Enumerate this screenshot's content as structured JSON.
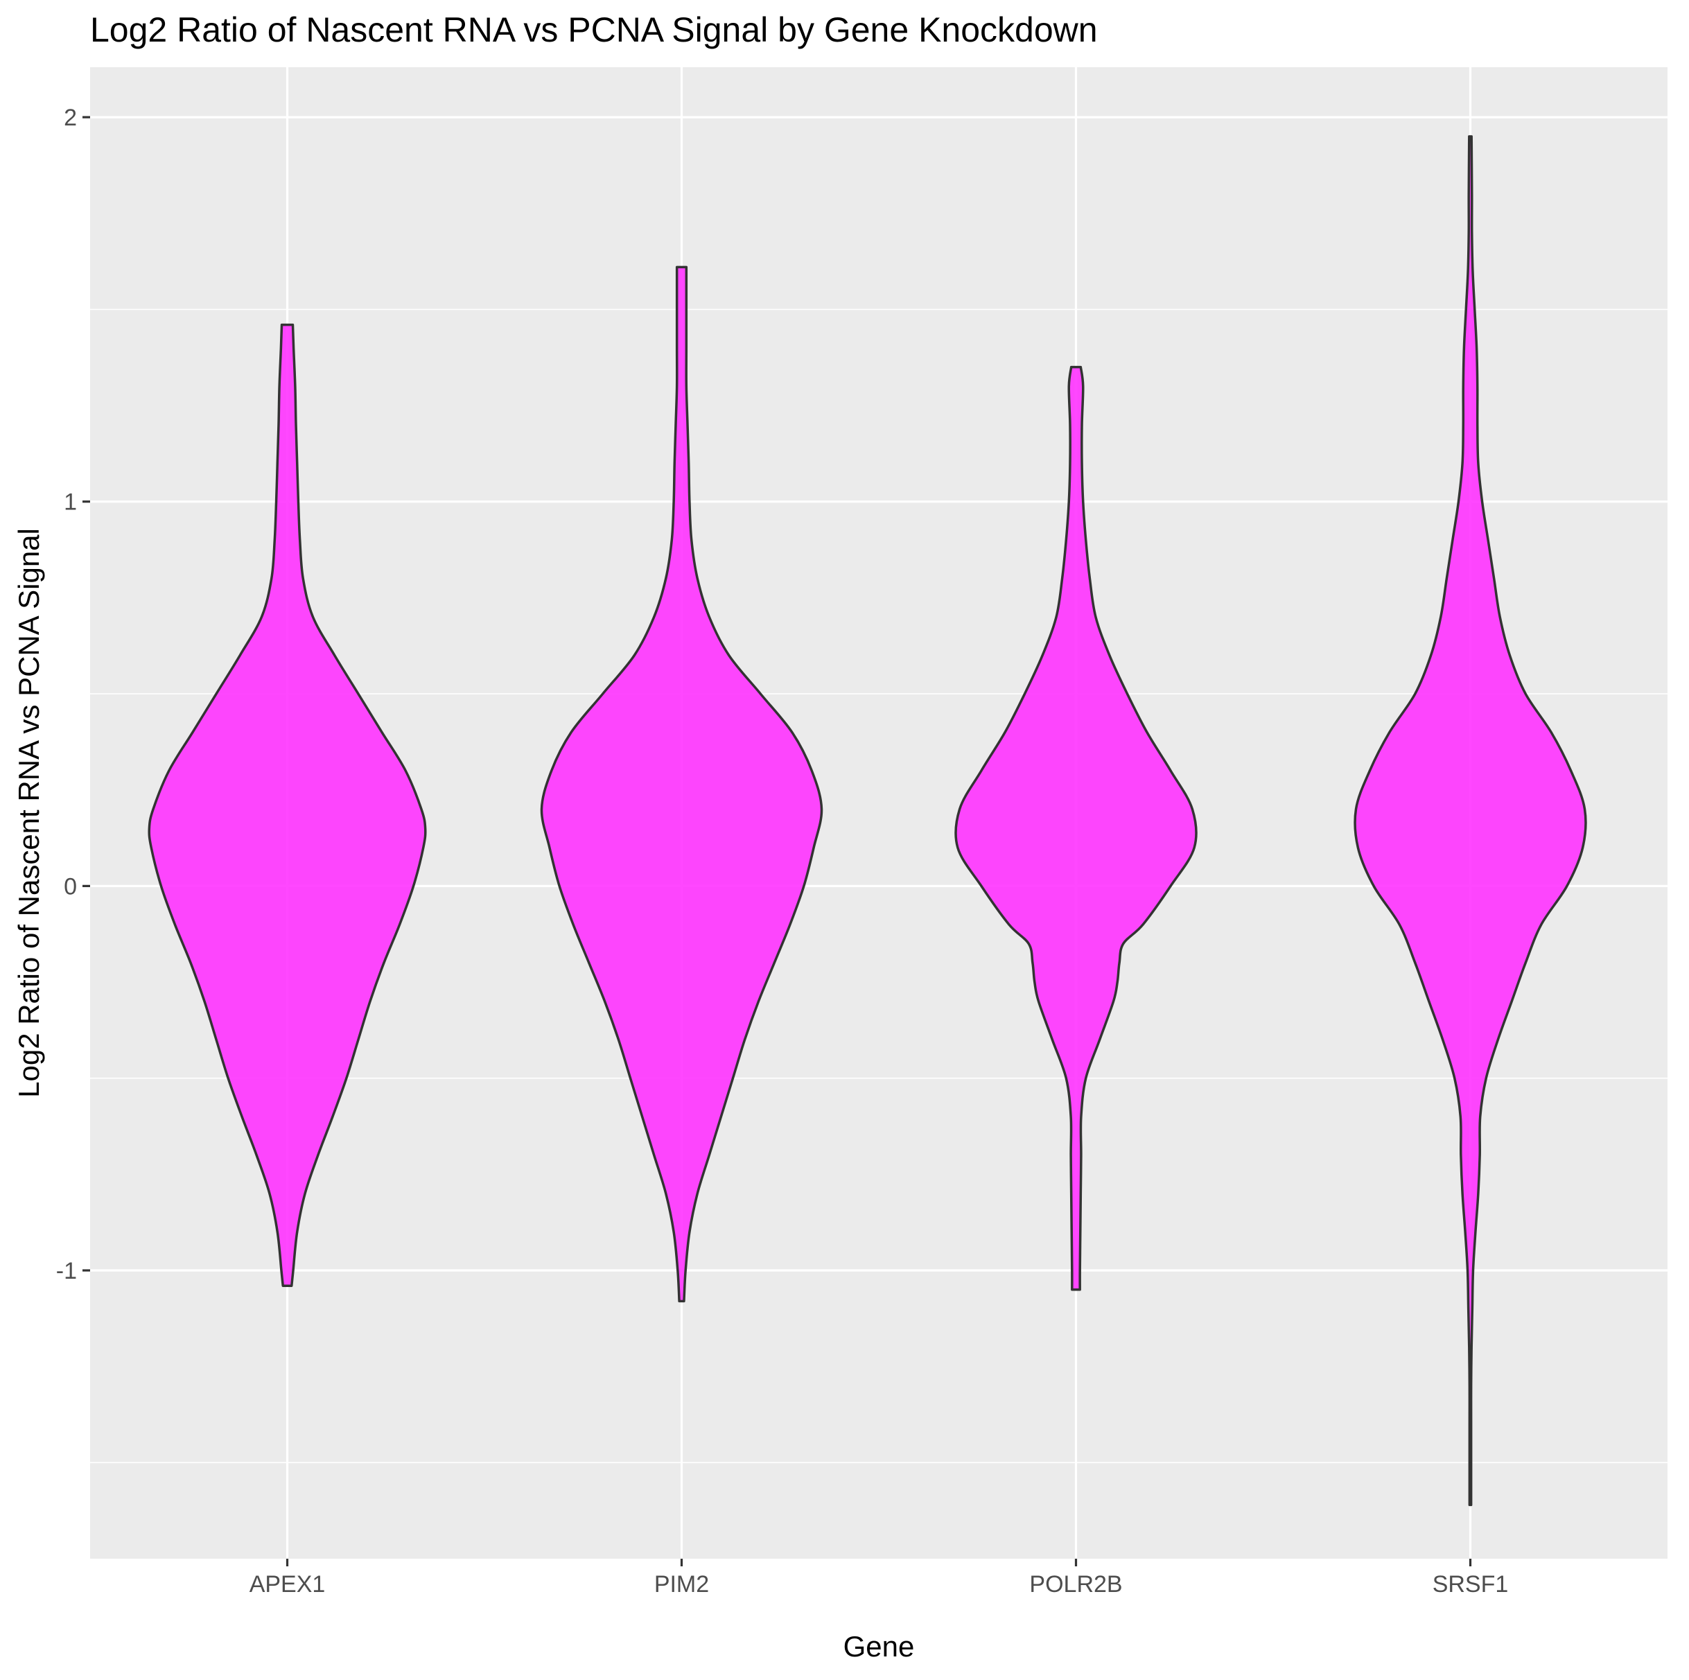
{
  "chart_data": {
    "type": "violin",
    "title": "Log2 Ratio of Nascent RNA vs PCNA Signal by Gene Knockdown",
    "xlabel": "Gene",
    "ylabel": "Log2 Ratio of Nascent RNA vs PCNA Signal",
    "categories": [
      "APEX1",
      "PIM2",
      "POLR2B",
      "SRSF1"
    ],
    "ylim": [
      -1.75,
      2.13
    ],
    "yticks": [
      -1,
      0,
      1,
      2
    ],
    "ytick_labels": [
      "-1",
      "0",
      "1",
      "2"
    ],
    "minor_grid": [
      -1.5,
      -0.5,
      0.5,
      1.5
    ],
    "grid": true,
    "legend": "none",
    "fill_color": "#ff33ff",
    "fill_opacity": 0.9,
    "stroke_color": "#333333",
    "panel_color": "#ebebeb",
    "violins": [
      {
        "name": "APEX1",
        "min": -1.04,
        "max": 1.46,
        "profile": [
          [
            -1.04,
            0.011
          ],
          [
            -1.0,
            0.015
          ],
          [
            -0.9,
            0.025
          ],
          [
            -0.8,
            0.045
          ],
          [
            -0.7,
            0.078
          ],
          [
            -0.6,
            0.115
          ],
          [
            -0.5,
            0.15
          ],
          [
            -0.4,
            0.18
          ],
          [
            -0.3,
            0.21
          ],
          [
            -0.2,
            0.245
          ],
          [
            -0.1,
            0.285
          ],
          [
            0.0,
            0.32
          ],
          [
            0.1,
            0.345
          ],
          [
            0.15,
            0.35
          ],
          [
            0.2,
            0.34
          ],
          [
            0.3,
            0.3
          ],
          [
            0.4,
            0.24
          ],
          [
            0.5,
            0.18
          ],
          [
            0.6,
            0.12
          ],
          [
            0.7,
            0.065
          ],
          [
            0.8,
            0.04
          ],
          [
            0.9,
            0.032
          ],
          [
            1.0,
            0.028
          ],
          [
            1.1,
            0.025
          ],
          [
            1.2,
            0.022
          ],
          [
            1.3,
            0.02
          ],
          [
            1.4,
            0.016
          ],
          [
            1.46,
            0.014
          ]
        ]
      },
      {
        "name": "PIM2",
        "min": -1.08,
        "max": 1.61,
        "profile": [
          [
            -1.08,
            0.006
          ],
          [
            -1.0,
            0.01
          ],
          [
            -0.9,
            0.02
          ],
          [
            -0.8,
            0.04
          ],
          [
            -0.7,
            0.07
          ],
          [
            -0.6,
            0.1
          ],
          [
            -0.5,
            0.13
          ],
          [
            -0.4,
            0.16
          ],
          [
            -0.3,
            0.195
          ],
          [
            -0.2,
            0.235
          ],
          [
            -0.1,
            0.275
          ],
          [
            0.0,
            0.31
          ],
          [
            0.1,
            0.335
          ],
          [
            0.2,
            0.355
          ],
          [
            0.3,
            0.33
          ],
          [
            0.4,
            0.28
          ],
          [
            0.5,
            0.2
          ],
          [
            0.6,
            0.12
          ],
          [
            0.7,
            0.07
          ],
          [
            0.8,
            0.04
          ],
          [
            0.9,
            0.025
          ],
          [
            1.0,
            0.02
          ],
          [
            1.1,
            0.018
          ],
          [
            1.2,
            0.015
          ],
          [
            1.3,
            0.012
          ],
          [
            1.4,
            0.012
          ],
          [
            1.5,
            0.012
          ],
          [
            1.61,
            0.012
          ]
        ]
      },
      {
        "name": "POLR2B",
        "min": -1.05,
        "max": 1.35,
        "profile": [
          [
            -1.05,
            0.01
          ],
          [
            -1.0,
            0.01
          ],
          [
            -0.9,
            0.011
          ],
          [
            -0.8,
            0.012
          ],
          [
            -0.7,
            0.013
          ],
          [
            -0.6,
            0.013
          ],
          [
            -0.5,
            0.025
          ],
          [
            -0.4,
            0.06
          ],
          [
            -0.3,
            0.095
          ],
          [
            -0.25,
            0.105
          ],
          [
            -0.2,
            0.11
          ],
          [
            -0.15,
            0.12
          ],
          [
            -0.1,
            0.17
          ],
          [
            0.0,
            0.24
          ],
          [
            0.1,
            0.3
          ],
          [
            0.2,
            0.295
          ],
          [
            0.3,
            0.24
          ],
          [
            0.4,
            0.18
          ],
          [
            0.5,
            0.13
          ],
          [
            0.6,
            0.085
          ],
          [
            0.7,
            0.05
          ],
          [
            0.8,
            0.035
          ],
          [
            0.9,
            0.025
          ],
          [
            1.0,
            0.018
          ],
          [
            1.1,
            0.015
          ],
          [
            1.2,
            0.015
          ],
          [
            1.3,
            0.018
          ],
          [
            1.35,
            0.012
          ]
        ]
      },
      {
        "name": "SRSF1",
        "min": -1.61,
        "max": 1.95,
        "profile": [
          [
            -1.61,
            0.002
          ],
          [
            -1.5,
            0.002
          ],
          [
            -1.4,
            0.002
          ],
          [
            -1.3,
            0.002
          ],
          [
            -1.2,
            0.003
          ],
          [
            -1.1,
            0.005
          ],
          [
            -1.0,
            0.007
          ],
          [
            -0.9,
            0.013
          ],
          [
            -0.8,
            0.02
          ],
          [
            -0.7,
            0.024
          ],
          [
            -0.6,
            0.025
          ],
          [
            -0.5,
            0.04
          ],
          [
            -0.4,
            0.07
          ],
          [
            -0.3,
            0.105
          ],
          [
            -0.2,
            0.14
          ],
          [
            -0.1,
            0.18
          ],
          [
            0.0,
            0.245
          ],
          [
            0.1,
            0.285
          ],
          [
            0.2,
            0.29
          ],
          [
            0.3,
            0.255
          ],
          [
            0.4,
            0.205
          ],
          [
            0.5,
            0.14
          ],
          [
            0.6,
            0.1
          ],
          [
            0.7,
            0.075
          ],
          [
            0.8,
            0.06
          ],
          [
            0.9,
            0.045
          ],
          [
            1.0,
            0.03
          ],
          [
            1.1,
            0.02
          ],
          [
            1.2,
            0.018
          ],
          [
            1.3,
            0.018
          ],
          [
            1.4,
            0.016
          ],
          [
            1.5,
            0.011
          ],
          [
            1.6,
            0.006
          ],
          [
            1.7,
            0.004
          ],
          [
            1.8,
            0.004
          ],
          [
            1.95,
            0.003
          ]
        ]
      }
    ]
  }
}
